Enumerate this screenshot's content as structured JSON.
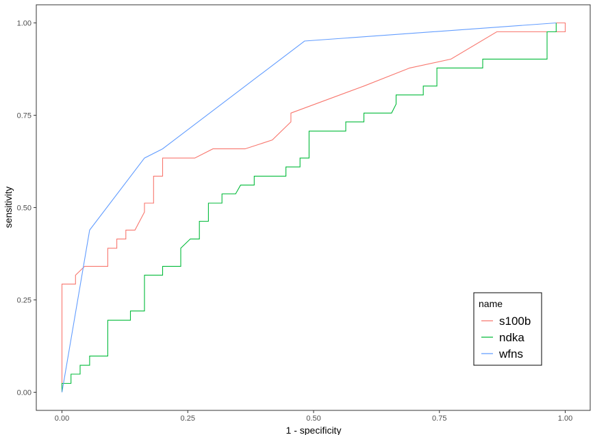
{
  "chart_data": {
    "type": "line",
    "xlabel": "1 - specificity",
    "ylabel": "sensitivity",
    "xlim": [
      -0.05,
      1.04
    ],
    "ylim": [
      -0.05,
      1.05
    ],
    "x_ticks": [
      0,
      0.25,
      0.5,
      0.75,
      1
    ],
    "x_tick_labels": [
      "0.00",
      "0.25",
      "0.50",
      "0.75",
      "1.00"
    ],
    "y_ticks": [
      0,
      0.25,
      0.5,
      0.75,
      1
    ],
    "y_tick_labels": [
      "0.00",
      "0.25",
      "0.50",
      "0.75",
      "1.00"
    ],
    "grid": false,
    "legend": {
      "title": "name",
      "position": "bottom-right"
    },
    "series": [
      {
        "name": "s100b",
        "color": "#F8766D",
        "x": [
          0,
          0,
          0.027,
          0.027,
          0.045,
          0.091,
          0.091,
          0.109,
          0.109,
          0.127,
          0.127,
          0.145,
          0.164,
          0.164,
          0.182,
          0.182,
          0.2,
          0.2,
          0.264,
          0.3,
          0.364,
          0.418,
          0.455,
          0.455,
          0.6,
          0.691,
          0.773,
          0.864,
          0.982,
          1,
          1,
          0.982
        ],
        "y": [
          0,
          0.293,
          0.293,
          0.317,
          0.341,
          0.341,
          0.39,
          0.39,
          0.415,
          0.415,
          0.439,
          0.439,
          0.488,
          0.512,
          0.512,
          0.585,
          0.585,
          0.634,
          0.634,
          0.659,
          0.659,
          0.683,
          0.732,
          0.756,
          0.829,
          0.878,
          0.902,
          0.976,
          0.976,
          0.976,
          1,
          1
        ]
      },
      {
        "name": "ndka",
        "color": "#00BA38",
        "x": [
          0,
          0,
          0.018,
          0.018,
          0.036,
          0.036,
          0.055,
          0.055,
          0.091,
          0.091,
          0.136,
          0.136,
          0.164,
          0.164,
          0.2,
          0.2,
          0.236,
          0.236,
          0.255,
          0.255,
          0.273,
          0.273,
          0.291,
          0.291,
          0.318,
          0.318,
          0.345,
          0.355,
          0.355,
          0.382,
          0.382,
          0.445,
          0.445,
          0.473,
          0.473,
          0.491,
          0.491,
          0.564,
          0.564,
          0.6,
          0.6,
          0.655,
          0.664,
          0.664,
          0.718,
          0.718,
          0.745,
          0.745,
          0.836,
          0.836,
          0.964,
          0.964,
          0.982,
          0.982
        ],
        "y": [
          0,
          0.024,
          0.024,
          0.049,
          0.049,
          0.073,
          0.073,
          0.098,
          0.098,
          0.195,
          0.195,
          0.22,
          0.22,
          0.317,
          0.317,
          0.341,
          0.341,
          0.39,
          0.415,
          0.415,
          0.415,
          0.463,
          0.463,
          0.512,
          0.512,
          0.537,
          0.537,
          0.561,
          0.561,
          0.561,
          0.585,
          0.585,
          0.61,
          0.61,
          0.634,
          0.634,
          0.707,
          0.707,
          0.732,
          0.732,
          0.756,
          0.756,
          0.78,
          0.805,
          0.805,
          0.829,
          0.829,
          0.878,
          0.878,
          0.902,
          0.902,
          0.976,
          0.976,
          1
        ]
      },
      {
        "name": "wfns",
        "color": "#619CFF",
        "x": [
          0,
          0.055,
          0.164,
          0.2,
          0.482,
          0.982
        ],
        "y": [
          0,
          0.439,
          0.634,
          0.659,
          0.951,
          1
        ]
      }
    ]
  }
}
